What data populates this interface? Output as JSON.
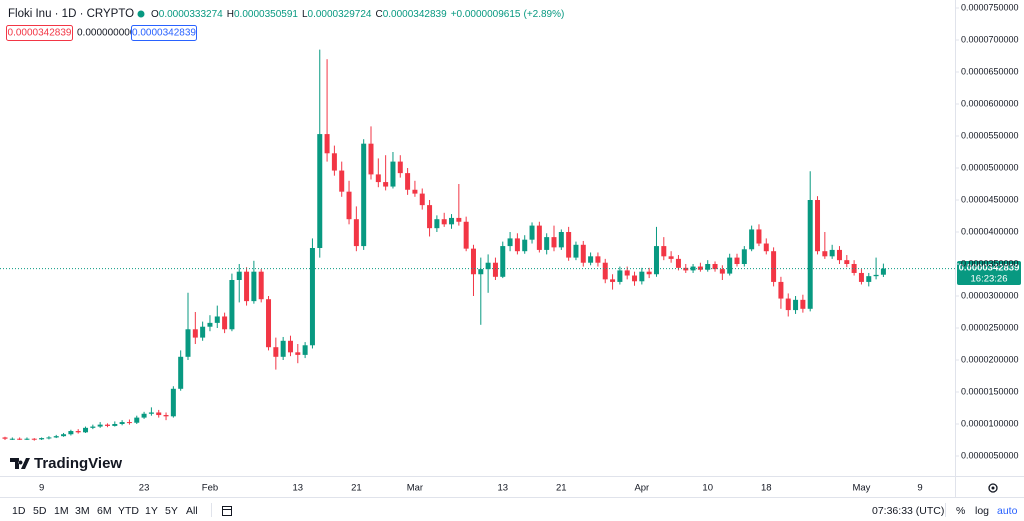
{
  "ui": {
    "header": {
      "symbol": "Floki Inu · 1D · CRYPTO",
      "o": "O",
      "open": "0.0000333274",
      "h": "H",
      "high": "0.0000350591",
      "l": "L",
      "low": "0.0000329724",
      "c": "C",
      "close": "0.0000342839",
      "change": "+0.0000009615",
      "change_pct": "(+2.89%)"
    },
    "boxes": [
      "0.0000342839",
      "0.0000000000",
      "0.0000342839"
    ],
    "price_tag": {
      "price": "0.0000342839",
      "countdown": "16:23:26"
    },
    "logo": "TradingView",
    "toolbar": {
      "ranges": [
        "1D",
        "5D",
        "1M",
        "3M",
        "6M",
        "YTD",
        "1Y",
        "5Y",
        "All"
      ],
      "time": "07:36:33 (UTC)",
      "percent": "%",
      "log": "log",
      "auto": "auto"
    }
  },
  "chart_data": {
    "type": "candlestick",
    "up_color": "#089981",
    "down_color": "#f23645",
    "grid": false,
    "categories": [
      null,
      null,
      null,
      null,
      null,
      "9",
      null,
      null,
      null,
      null,
      null,
      null,
      null,
      null,
      null,
      null,
      null,
      null,
      null,
      "23",
      null,
      null,
      null,
      null,
      null,
      null,
      null,
      null,
      "Feb",
      null,
      null,
      null,
      null,
      null,
      null,
      null,
      null,
      null,
      null,
      null,
      "13",
      null,
      null,
      null,
      null,
      null,
      null,
      null,
      "21",
      null,
      null,
      null,
      null,
      null,
      null,
      null,
      "Mar",
      null,
      null,
      null,
      null,
      null,
      null,
      null,
      null,
      null,
      null,
      null,
      "13",
      null,
      null,
      null,
      null,
      null,
      null,
      null,
      "21",
      null,
      null,
      null,
      null,
      null,
      null,
      null,
      null,
      null,
      null,
      "Apr",
      null,
      null,
      null,
      null,
      null,
      null,
      null,
      null,
      "10",
      null,
      null,
      null,
      null,
      null,
      null,
      null,
      "18",
      null,
      null,
      null,
      null,
      null,
      null,
      null,
      null,
      null,
      null,
      null,
      null,
      "May",
      null,
      null,
      null,
      null,
      null,
      null,
      null,
      "9"
    ],
    "open": [
      7.9e-06,
      7.7e-06,
      7.7e-06,
      7.6e-06,
      7.7e-06,
      7.6e-06,
      7.8e-06,
      7.9e-06,
      8.1e-06,
      8.4e-06,
      8.9e-06,
      8.7e-06,
      9.4e-06,
      9.6e-06,
      9.9e-06,
      9.7e-06,
      1e-05,
      1.03e-05,
      1.02e-05,
      1.1e-05,
      1.16e-05,
      1.18e-05,
      1.14e-05,
      1.12e-05,
      1.55e-05,
      2.05e-05,
      2.48e-05,
      2.35e-05,
      2.52e-05,
      2.58e-05,
      2.68e-05,
      2.48e-05,
      3.25e-05,
      3.38e-05,
      2.92e-05,
      3.38e-05,
      2.95e-05,
      2.2e-05,
      2.05e-05,
      2.3e-05,
      2.12e-05,
      2.08e-05,
      2.23e-05,
      3.75e-05,
      5.53e-05,
      5.23e-05,
      4.96e-05,
      4.63e-05,
      4.2e-05,
      3.78e-05,
      5.38e-05,
      4.9e-05,
      4.78e-05,
      4.71e-05,
      5.1e-05,
      4.92e-05,
      4.66e-05,
      4.6e-05,
      4.42e-05,
      4.06e-05,
      4.2e-05,
      4.12e-05,
      4.22e-05,
      4.16e-05,
      3.74e-05,
      3.34e-05,
      3.42e-05,
      3.52e-05,
      3.3e-05,
      3.78e-05,
      3.9e-05,
      3.7e-05,
      3.88e-05,
      4.1e-05,
      3.72e-05,
      3.92e-05,
      3.76e-05,
      4e-05,
      3.6e-05,
      3.8e-05,
      3.52e-05,
      3.62e-05,
      3.52e-05,
      3.26e-05,
      3.22e-05,
      3.4e-05,
      3.32e-05,
      3.23e-05,
      3.38e-05,
      3.34e-05,
      3.78e-05,
      3.62e-05,
      3.58e-05,
      3.44e-05,
      3.4e-05,
      3.46e-05,
      3.41e-05,
      3.5e-05,
      3.42e-05,
      3.35e-05,
      3.6e-05,
      3.5e-05,
      3.73e-05,
      4.04e-05,
      3.82e-05,
      3.7e-05,
      3.22e-05,
      2.96e-05,
      2.78e-05,
      2.94e-05,
      2.8e-05,
      4.5e-05,
      3.7e-05,
      3.62e-05,
      3.72e-05,
      3.56e-05,
      3.5e-05,
      3.36e-05,
      3.22e-05,
      3.31e-05,
      3.33274e-05,
      null,
      null,
      null,
      null,
      null
    ],
    "high": [
      8e-06,
      7.9e-06,
      7.9e-06,
      7.9e-06,
      7.8e-06,
      7.9e-06,
      8.1e-06,
      8.3e-06,
      8.6e-06,
      9.1e-06,
      9.2e-06,
      9.6e-06,
      9.9e-06,
      1.03e-05,
      1.01e-05,
      1.04e-05,
      1.06e-05,
      1.07e-05,
      1.13e-05,
      1.19e-05,
      1.26e-05,
      1.22e-05,
      1.18e-05,
      1.59e-05,
      2.15e-05,
      3.05e-05,
      2.75e-05,
      2.6e-05,
      2.7e-05,
      2.85e-05,
      2.74e-05,
      3.35e-05,
      3.5e-05,
      3.45e-05,
      3.55e-05,
      3.42e-05,
      3e-05,
      2.35e-05,
      2.36e-05,
      2.38e-05,
      2.25e-05,
      2.28e-05,
      3.9e-05,
      6.85e-05,
      6.7e-05,
      5.35e-05,
      5.1e-05,
      4.8e-05,
      4.4e-05,
      5.45e-05,
      5.65e-05,
      5.15e-05,
      5.2e-05,
      5.25e-05,
      5.2e-05,
      5e-05,
      4.8e-05,
      4.68e-05,
      4.5e-05,
      4.26e-05,
      4.3e-05,
      4.28e-05,
      4.75e-05,
      4.24e-05,
      3.8e-05,
      3.6e-05,
      3.65e-05,
      3.6e-05,
      3.85e-05,
      4e-05,
      3.98e-05,
      3.95e-05,
      4.15e-05,
      4.16e-05,
      3.98e-05,
      4.1e-05,
      4.04e-05,
      4.08e-05,
      3.85e-05,
      3.86e-05,
      3.68e-05,
      3.68e-05,
      3.58e-05,
      3.34e-05,
      3.46e-05,
      3.46e-05,
      3.38e-05,
      3.44e-05,
      3.44e-05,
      4.08e-05,
      3.92e-05,
      3.7e-05,
      3.64e-05,
      3.5e-05,
      3.5e-05,
      3.52e-05,
      3.56e-05,
      3.54e-05,
      3.48e-05,
      3.66e-05,
      3.66e-05,
      3.78e-05,
      4.1e-05,
      4.12e-05,
      3.9e-05,
      3.76e-05,
      3.3e-05,
      3.04e-05,
      3e-05,
      3.02e-05,
      4.95e-05,
      4.56e-05,
      4e-05,
      3.8e-05,
      3.78e-05,
      3.64e-05,
      3.56e-05,
      3.42e-05,
      3.36e-05,
      3.6e-05,
      3.50591e-05,
      null,
      null,
      null,
      null,
      null
    ],
    "low": [
      7.5e-06,
      7.5e-06,
      7.5e-06,
      7.5e-06,
      7.4e-06,
      7.5e-06,
      7.6e-06,
      7.8e-06,
      8e-06,
      8.2e-06,
      8.5e-06,
      8.6e-06,
      9.2e-06,
      9.4e-06,
      9.5e-06,
      9.6e-06,
      9.8e-06,
      9.9e-06,
      1e-05,
      1.08e-05,
      1.13e-05,
      1.1e-05,
      1.06e-05,
      1.1e-05,
      1.52e-05,
      2e-05,
      2.25e-05,
      2.3e-05,
      2.45e-05,
      2.5e-05,
      2.42e-05,
      2.45e-05,
      2.9e-05,
      2.85e-05,
      2.88e-05,
      2.9e-05,
      2.15e-05,
      1.85e-05,
      2e-05,
      2.06e-05,
      1.95e-05,
      2.03e-05,
      2.18e-05,
      3.6e-05,
      5.1e-05,
      4.88e-05,
      4.55e-05,
      4.12e-05,
      3.7e-05,
      3.72e-05,
      4.82e-05,
      4.7e-05,
      4.65e-05,
      4.68e-05,
      4.85e-05,
      4.58e-05,
      4.55e-05,
      4.35e-05,
      3.93e-05,
      4e-05,
      4.08e-05,
      4.05e-05,
      4.1e-05,
      3.7e-05,
      3e-05,
      2.55e-05,
      3.05e-05,
      3.25e-05,
      3.28e-05,
      3.7e-05,
      3.65e-05,
      3.66e-05,
      3.82e-05,
      3.68e-05,
      3.65e-05,
      3.7e-05,
      3.72e-05,
      3.55e-05,
      3.56e-05,
      3.46e-05,
      3.48e-05,
      3.46e-05,
      3.2e-05,
      3.1e-05,
      3.18e-05,
      3.26e-05,
      3.16e-05,
      3.18e-05,
      3.28e-05,
      3.3e-05,
      3.56e-05,
      3.52e-05,
      3.4e-05,
      3.36e-05,
      3.36e-05,
      3.38e-05,
      3.38e-05,
      3.38e-05,
      3.25e-05,
      3.32e-05,
      3.46e-05,
      3.46e-05,
      3.7e-05,
      3.78e-05,
      3.65e-05,
      3.15e-05,
      2.8e-05,
      2.68e-05,
      2.72e-05,
      2.74e-05,
      2.76e-05,
      3.65e-05,
      3.58e-05,
      3.58e-05,
      3.5e-05,
      3.45e-05,
      3.32e-05,
      3.18e-05,
      3.15e-05,
      3.26e-05,
      3.29724e-05,
      null,
      null,
      null,
      null,
      null
    ],
    "close": [
      7.7e-06,
      7.7e-06,
      7.6e-06,
      7.7e-06,
      7.6e-06,
      7.8e-06,
      7.9e-06,
      8.1e-06,
      8.4e-06,
      8.9e-06,
      8.7e-06,
      9.4e-06,
      9.6e-06,
      9.9e-06,
      9.7e-06,
      1e-05,
      1.03e-05,
      1.02e-05,
      1.1e-05,
      1.16e-05,
      1.18e-05,
      1.14e-05,
      1.12e-05,
      1.55e-05,
      2.05e-05,
      2.48e-05,
      2.35e-05,
      2.52e-05,
      2.58e-05,
      2.68e-05,
      2.48e-05,
      3.25e-05,
      3.38e-05,
      2.92e-05,
      3.38e-05,
      2.95e-05,
      2.2e-05,
      2.05e-05,
      2.3e-05,
      2.12e-05,
      2.08e-05,
      2.23e-05,
      3.75e-05,
      5.53e-05,
      5.23e-05,
      4.96e-05,
      4.63e-05,
      4.2e-05,
      3.78e-05,
      5.38e-05,
      4.9e-05,
      4.78e-05,
      4.71e-05,
      5.1e-05,
      4.92e-05,
      4.66e-05,
      4.6e-05,
      4.42e-05,
      4.06e-05,
      4.2e-05,
      4.12e-05,
      4.22e-05,
      4.16e-05,
      3.74e-05,
      3.34e-05,
      3.42e-05,
      3.52e-05,
      3.3e-05,
      3.78e-05,
      3.9e-05,
      3.7e-05,
      3.88e-05,
      4.1e-05,
      3.72e-05,
      3.92e-05,
      3.76e-05,
      4e-05,
      3.6e-05,
      3.8e-05,
      3.52e-05,
      3.62e-05,
      3.52e-05,
      3.26e-05,
      3.22e-05,
      3.4e-05,
      3.32e-05,
      3.23e-05,
      3.38e-05,
      3.34e-05,
      3.78e-05,
      3.62e-05,
      3.58e-05,
      3.44e-05,
      3.4e-05,
      3.46e-05,
      3.41e-05,
      3.5e-05,
      3.42e-05,
      3.35e-05,
      3.6e-05,
      3.5e-05,
      3.73e-05,
      4.04e-05,
      3.82e-05,
      3.7e-05,
      3.22e-05,
      2.96e-05,
      2.78e-05,
      2.94e-05,
      2.8e-05,
      4.5e-05,
      3.7e-05,
      3.62e-05,
      3.72e-05,
      3.56e-05,
      3.5e-05,
      3.36e-05,
      3.22e-05,
      3.31e-05,
      3.33e-05,
      3.42839e-05,
      null,
      null,
      null,
      null,
      null
    ],
    "ylim": [
      1.875e-06,
      7.625e-05
    ],
    "yticks": [
      {
        "value": 7.5e-05,
        "label": "0.0000750000"
      },
      {
        "value": 7e-05,
        "label": "0.0000700000"
      },
      {
        "value": 6.5e-05,
        "label": "0.0000650000"
      },
      {
        "value": 6e-05,
        "label": "0.0000600000"
      },
      {
        "value": 5.5e-05,
        "label": "0.0000550000"
      },
      {
        "value": 5e-05,
        "label": "0.0000500000"
      },
      {
        "value": 4.5e-05,
        "label": "0.0000450000"
      },
      {
        "value": 4e-05,
        "label": "0.0000400000"
      },
      {
        "value": 3.5e-05,
        "label": "0.0000350000"
      },
      {
        "value": 3e-05,
        "label": "0.0000300000"
      },
      {
        "value": 2.5e-05,
        "label": "0.0000250000"
      },
      {
        "value": 2e-05,
        "label": "0.0000200000"
      },
      {
        "value": 1.5e-05,
        "label": "0.0000150000"
      },
      {
        "value": 1e-05,
        "label": "0.0000100000"
      },
      {
        "value": 5e-06,
        "label": "0.0000050000"
      }
    ]
  }
}
